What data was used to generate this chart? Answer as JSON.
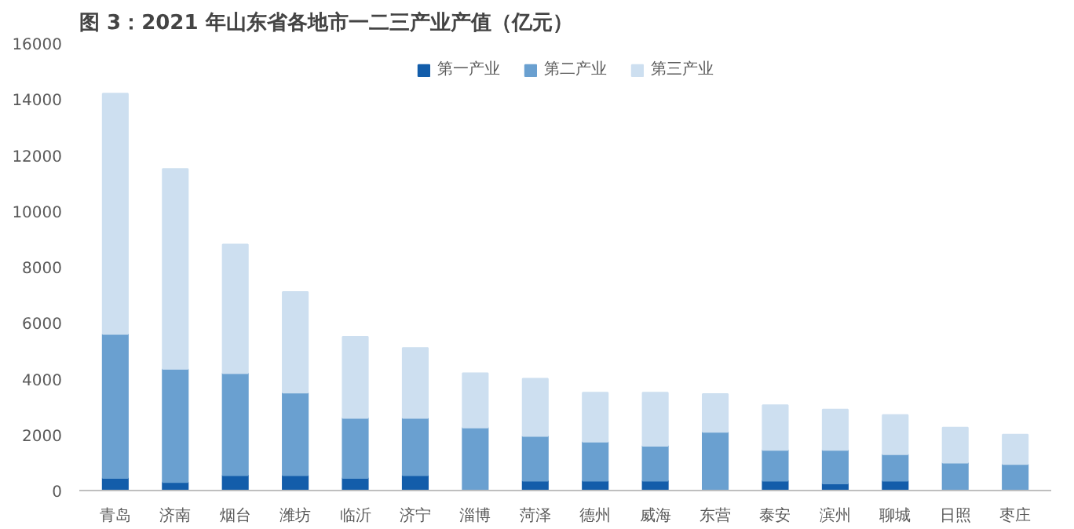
{
  "chart_data": {
    "type": "bar",
    "stacked": true,
    "title": "图 3：2021 年山东省各地市一二三产业产值（亿元）",
    "categories": [
      "青岛",
      "济南",
      "烟台",
      "潍坊",
      "临沂",
      "济宁",
      "淄博",
      "菏泽",
      "德州",
      "威海",
      "东营",
      "泰安",
      "滨州",
      "聊城",
      "日照",
      "枣庄"
    ],
    "series": [
      {
        "name": "第一产业",
        "color": "#135daa",
        "values": [
          450,
          300,
          550,
          550,
          450,
          550,
          null,
          350,
          350,
          350,
          null,
          350,
          250,
          350,
          null,
          null
        ]
      },
      {
        "name": "第二产业",
        "color": "#6aa0d0",
        "values": [
          5150,
          4050,
          3650,
          2950,
          2150,
          2050,
          2250,
          1600,
          1400,
          1250,
          2100,
          1100,
          1200,
          950,
          1000,
          950
        ]
      },
      {
        "name": "第三产业",
        "color": "#cddff0",
        "values": [
          8600,
          7150,
          4600,
          3600,
          2900,
          2500,
          1950,
          2050,
          1750,
          1900,
          1350,
          1600,
          1450,
          1400,
          1250,
          1050
        ]
      }
    ],
    "ylim": [
      0,
      16000
    ],
    "yticks": [
      0,
      2000,
      4000,
      6000,
      8000,
      10000,
      12000,
      14000,
      16000
    ],
    "grid": false,
    "legend": "top"
  }
}
